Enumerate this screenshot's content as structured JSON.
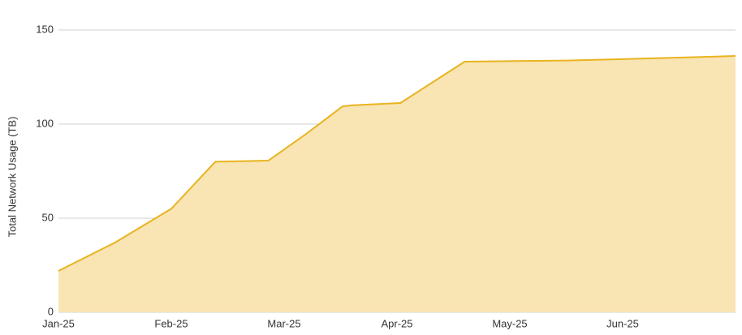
{
  "chart_data": {
    "type": "area",
    "y_label": "Total Network Usage (TB)",
    "x": [
      0,
      0.5,
      1,
      1.39,
      1.86,
      2.2,
      2.52,
      2.61,
      3.03,
      3.6,
      4.5,
      5.3,
      6
    ],
    "series": [
      {
        "name": "Total Network Usage",
        "color": "#e8b420",
        "fill": "#f9e4b3",
        "values": [
          22,
          37,
          55,
          80,
          80.6,
          95,
          109.5,
          110,
          111.2,
          133.2,
          133.8,
          135,
          136.2
        ]
      }
    ],
    "xlim": [
      0,
      6
    ],
    "xticks": [
      {
        "value": 0,
        "label": "Jan-25"
      },
      {
        "value": 1,
        "label": "Feb-25"
      },
      {
        "value": 2,
        "label": "Mar-25"
      },
      {
        "value": 3,
        "label": "Apr-25"
      },
      {
        "value": 4,
        "label": "May-25"
      },
      {
        "value": 5,
        "label": "Jun-25"
      }
    ],
    "ylim": [
      0,
      150
    ],
    "yticks": [
      0,
      50,
      100,
      150
    ],
    "grid": true
  }
}
